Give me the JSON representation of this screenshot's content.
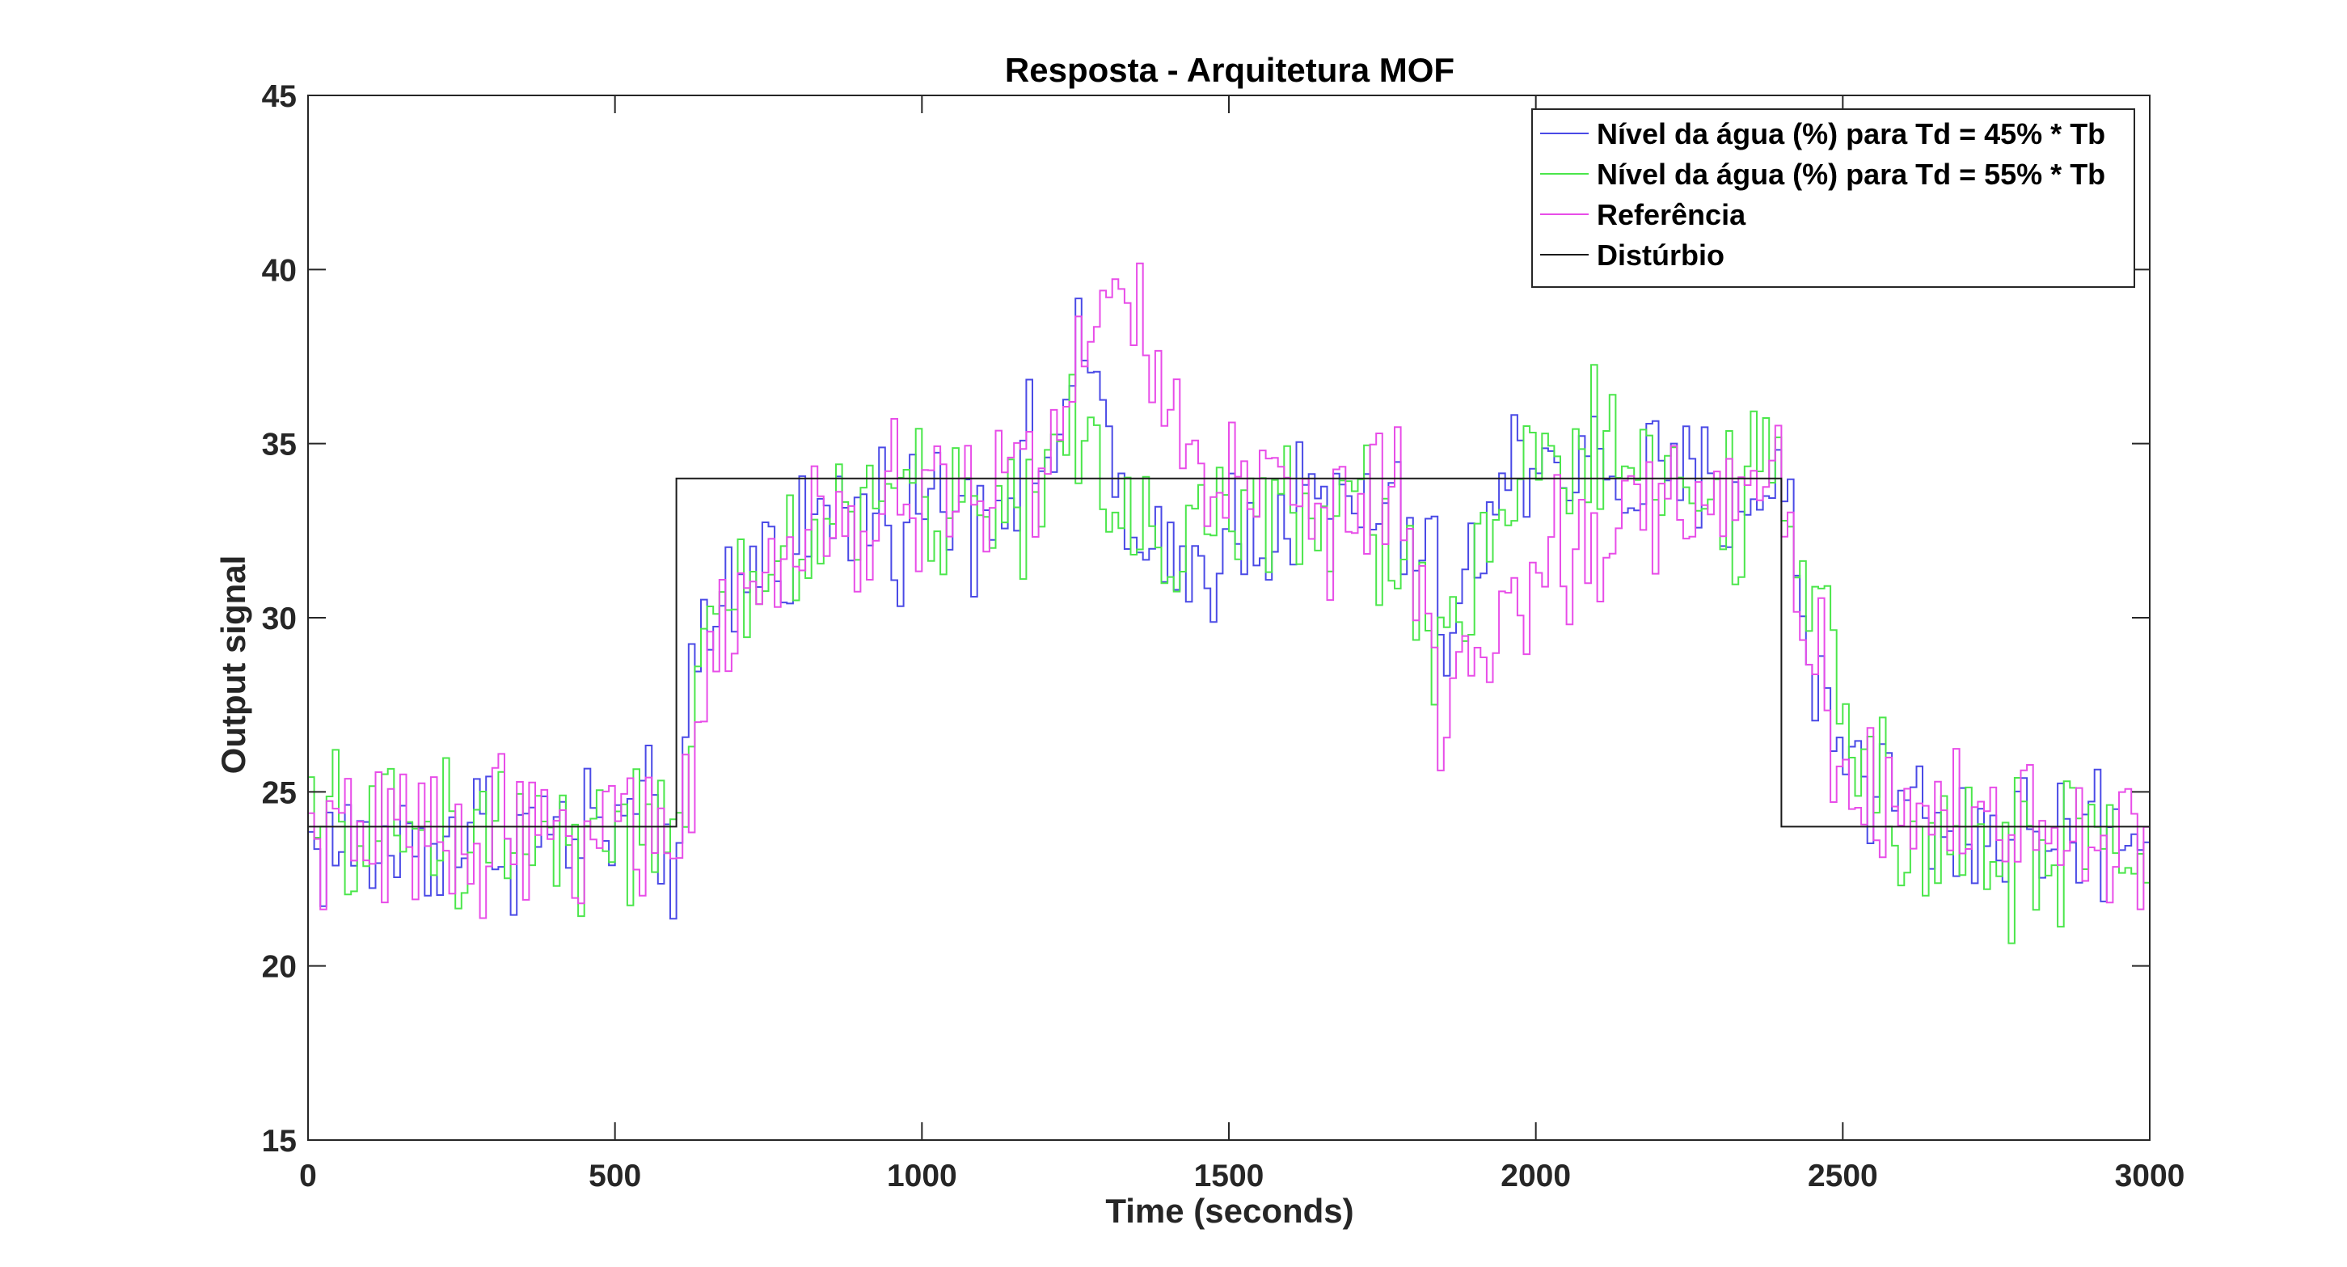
{
  "chart_data": {
    "type": "line",
    "title": "Resposta - Arquitetura MOF",
    "xlabel": "Time (seconds)",
    "ylabel": "Output signal",
    "xlim": [
      0,
      3000
    ],
    "ylim": [
      15,
      45
    ],
    "xticks": [
      "0",
      "500",
      "1000",
      "1500",
      "2000",
      "2500",
      "3000"
    ],
    "yticks": [
      "15",
      "20",
      "25",
      "30",
      "35",
      "40",
      "45"
    ],
    "grid": false,
    "legend_position": "top-right",
    "step_interval": 10,
    "series": [
      {
        "name": "Nível da água (%) para Td = 45% * Tb",
        "color": "#4a4ae6",
        "keypoints": [
          [
            0,
            23.5
          ],
          [
            100,
            23.3
          ],
          [
            200,
            23.6
          ],
          [
            300,
            24.0
          ],
          [
            400,
            23.8
          ],
          [
            500,
            23.9
          ],
          [
            590,
            24.0
          ],
          [
            600,
            22.5
          ],
          [
            620,
            26.5
          ],
          [
            640,
            28.5
          ],
          [
            680,
            30.5
          ],
          [
            720,
            31.5
          ],
          [
            800,
            32.5
          ],
          [
            900,
            33.0
          ],
          [
            1000,
            33.2
          ],
          [
            1100,
            33.5
          ],
          [
            1200,
            34.5
          ],
          [
            1240,
            36.5
          ],
          [
            1280,
            37.0
          ],
          [
            1310,
            35.5
          ],
          [
            1340,
            31.5
          ],
          [
            1380,
            31.0
          ],
          [
            1450,
            31.5
          ],
          [
            1500,
            32.5
          ],
          [
            1600,
            33.0
          ],
          [
            1700,
            33.3
          ],
          [
            1800,
            32.5
          ],
          [
            1840,
            30.5
          ],
          [
            1860,
            29.5
          ],
          [
            1900,
            31.5
          ],
          [
            1960,
            34.0
          ],
          [
            2000,
            35.0
          ],
          [
            2100,
            34.2
          ],
          [
            2200,
            33.8
          ],
          [
            2300,
            33.5
          ],
          [
            2390,
            34.0
          ],
          [
            2410,
            33.0
          ],
          [
            2440,
            29.5
          ],
          [
            2480,
            27.0
          ],
          [
            2550,
            25.5
          ],
          [
            2650,
            24.0
          ],
          [
            2800,
            23.8
          ],
          [
            3000,
            24.0
          ]
        ],
        "noise": 1.7
      },
      {
        "name": "Nível da água (%) para Td = 55% * Tb",
        "color": "#4be64b",
        "keypoints": [
          [
            0,
            23.8
          ],
          [
            100,
            23.8
          ],
          [
            200,
            24.0
          ],
          [
            300,
            23.9
          ],
          [
            400,
            24.2
          ],
          [
            500,
            24.0
          ],
          [
            590,
            23.5
          ],
          [
            600,
            22.8
          ],
          [
            620,
            25.5
          ],
          [
            640,
            28.0
          ],
          [
            680,
            30.0
          ],
          [
            720,
            31.0
          ],
          [
            800,
            32.0
          ],
          [
            900,
            33.5
          ],
          [
            1000,
            33.3
          ],
          [
            1100,
            33.0
          ],
          [
            1200,
            34.0
          ],
          [
            1260,
            35.0
          ],
          [
            1300,
            34.0
          ],
          [
            1340,
            33.0
          ],
          [
            1400,
            32.5
          ],
          [
            1500,
            33.0
          ],
          [
            1600,
            32.8
          ],
          [
            1700,
            33.0
          ],
          [
            1760,
            32.5
          ],
          [
            1800,
            31.0
          ],
          [
            1850,
            29.0
          ],
          [
            1880,
            30.0
          ],
          [
            1920,
            33.0
          ],
          [
            2000,
            34.5
          ],
          [
            2100,
            34.8
          ],
          [
            2200,
            33.5
          ],
          [
            2300,
            33.5
          ],
          [
            2390,
            33.8
          ],
          [
            2410,
            33.0
          ],
          [
            2440,
            30.5
          ],
          [
            2480,
            28.0
          ],
          [
            2550,
            25.5
          ],
          [
            2650,
            24.0
          ],
          [
            2800,
            23.0
          ],
          [
            3000,
            23.5
          ]
        ],
        "noise": 1.8
      },
      {
        "name": "Referência",
        "color": "#e84de8",
        "keypoints": [
          [
            0,
            23.8
          ],
          [
            100,
            23.5
          ],
          [
            200,
            23.7
          ],
          [
            300,
            24.0
          ],
          [
            400,
            24.0
          ],
          [
            500,
            24.0
          ],
          [
            590,
            23.8
          ],
          [
            600,
            23.0
          ],
          [
            620,
            25.0
          ],
          [
            640,
            28.0
          ],
          [
            680,
            29.5
          ],
          [
            720,
            31.0
          ],
          [
            800,
            31.5
          ],
          [
            900,
            32.5
          ],
          [
            1000,
            33.5
          ],
          [
            1100,
            33.8
          ],
          [
            1200,
            34.5
          ],
          [
            1250,
            36.5
          ],
          [
            1300,
            39.5
          ],
          [
            1330,
            39.5
          ],
          [
            1360,
            38.0
          ],
          [
            1400,
            36.0
          ],
          [
            1440,
            35.0
          ],
          [
            1500,
            34.0
          ],
          [
            1600,
            33.5
          ],
          [
            1700,
            33.0
          ],
          [
            1780,
            33.0
          ],
          [
            1820,
            31.0
          ],
          [
            1860,
            25.5
          ],
          [
            1880,
            27.5
          ],
          [
            1900,
            29.0
          ],
          [
            2000,
            31.5
          ],
          [
            2100,
            32.0
          ],
          [
            2200,
            33.5
          ],
          [
            2300,
            33.8
          ],
          [
            2390,
            33.8
          ],
          [
            2410,
            33.0
          ],
          [
            2440,
            29.5
          ],
          [
            2480,
            27.0
          ],
          [
            2550,
            25.0
          ],
          [
            2650,
            24.5
          ],
          [
            2800,
            24.0
          ],
          [
            3000,
            23.5
          ]
        ],
        "noise": 1.7
      },
      {
        "name": "Distúrbio",
        "color": "#1a1a1a",
        "step": [
          [
            0,
            24
          ],
          [
            600,
            34
          ],
          [
            2400,
            24
          ],
          [
            3000,
            24
          ]
        ]
      }
    ]
  }
}
